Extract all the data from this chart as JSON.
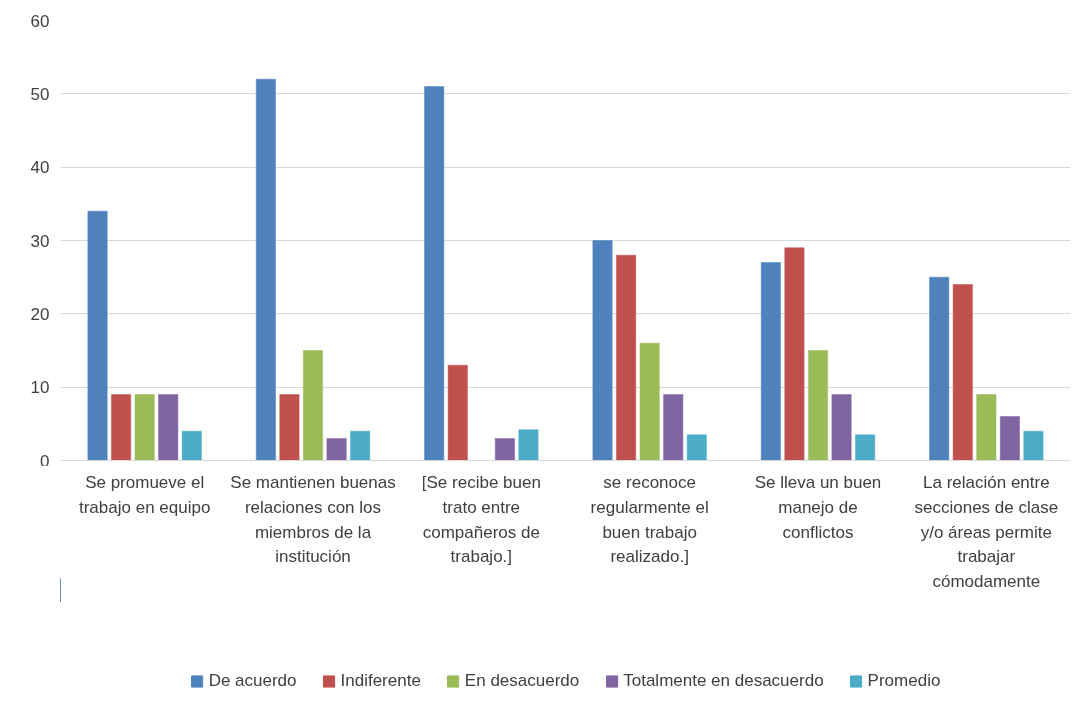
{
  "chart_data": {
    "type": "bar",
    "categories": [
      "Se promueve el trabajo en equipo",
      "Se mantienen buenas relaciones con los miembros de la institución",
      "[Se recibe buen trato entre compañeros de trabajo.]",
      "se reconoce regularmente el buen trabajo realizado.]",
      "Se lleva un buen manejo de conflictos",
      "La relación entre secciones de clase y/o áreas permite trabajar cómodamente"
    ],
    "series": [
      {
        "name": "De acuerdo",
        "color": "#4f81bd",
        "values": [
          34,
          52,
          51,
          30,
          27,
          25
        ]
      },
      {
        "name": "Indiferente",
        "color": "#c0504d",
        "values": [
          9,
          9,
          13,
          28,
          29,
          24
        ]
      },
      {
        "name": "En desacuerdo",
        "color": "#9bbb59",
        "values": [
          9,
          15,
          0,
          16,
          15,
          9
        ]
      },
      {
        "name": "Totalmente en desacuerdo",
        "color": "#8064a2",
        "values": [
          9,
          3,
          3,
          9,
          9,
          6
        ]
      },
      {
        "name": "Promedio",
        "color": "#4bacc6",
        "values": [
          4,
          4,
          4.2,
          3.5,
          3.5,
          4
        ]
      }
    ],
    "ylim": [
      0,
      60
    ],
    "yticks": [
      0,
      10,
      20,
      30,
      40,
      50,
      60
    ],
    "grid": "y",
    "legend": "bottom"
  }
}
